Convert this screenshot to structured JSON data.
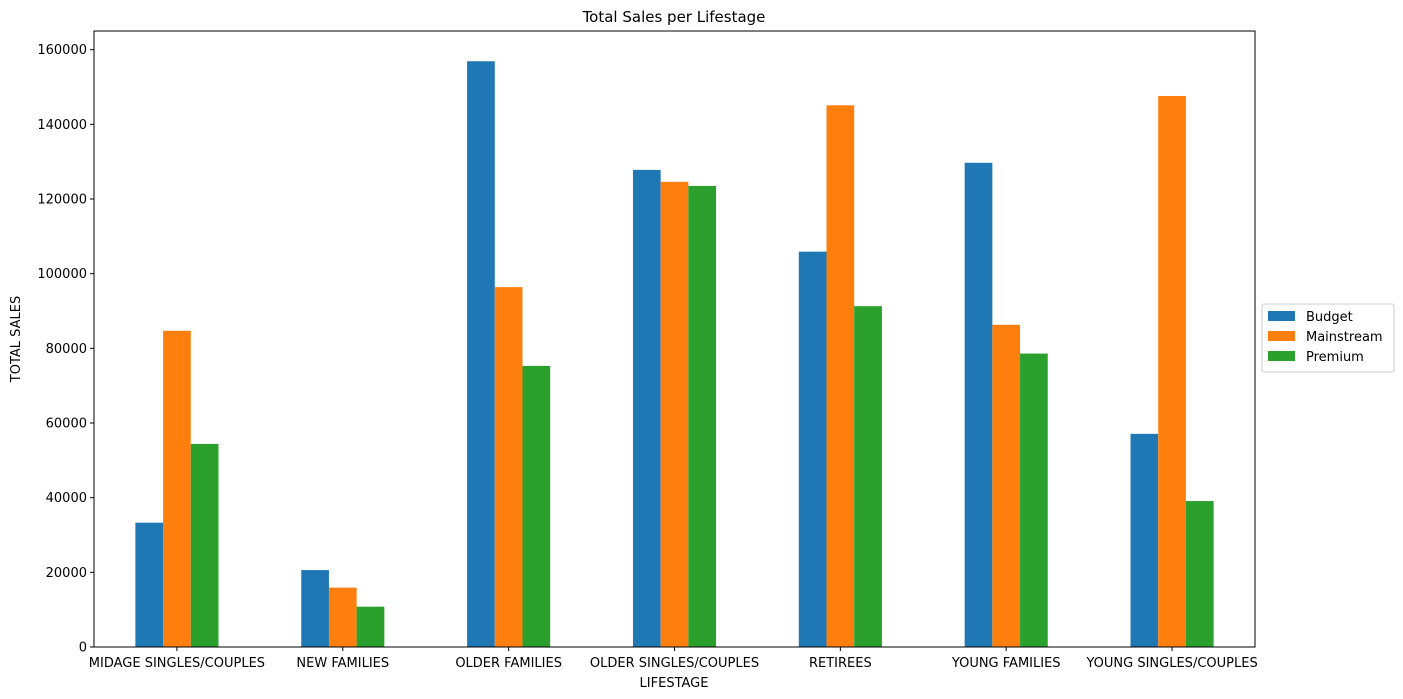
{
  "chart_data": {
    "type": "bar",
    "title": "Total Sales per Lifestage",
    "xlabel": "LIFESTAGE",
    "ylabel": "TOTAL SALES",
    "categories": [
      "MIDAGE SINGLES/COUPLES",
      "NEW FAMILIES",
      "OLDER FAMILIES",
      "OLDER SINGLES/COUPLES",
      "RETIREES",
      "YOUNG FAMILIES",
      "YOUNG SINGLES/COUPLES"
    ],
    "series": [
      {
        "name": "Budget",
        "color": "#1f77b4",
        "values": [
          33300,
          20600,
          156900,
          127800,
          105900,
          129700,
          57100
        ]
      },
      {
        "name": "Mainstream",
        "color": "#ff7f0e",
        "values": [
          84700,
          15900,
          96400,
          124600,
          145100,
          86300,
          147600
        ]
      },
      {
        "name": "Premium",
        "color": "#2ca02c",
        "values": [
          54400,
          10800,
          75300,
          123500,
          91300,
          78600,
          39100
        ]
      }
    ],
    "ylim": [
      0,
      165000
    ],
    "yticks": [
      0,
      20000,
      40000,
      60000,
      80000,
      100000,
      120000,
      140000,
      160000
    ],
    "grid": false,
    "legend_position": "right"
  }
}
